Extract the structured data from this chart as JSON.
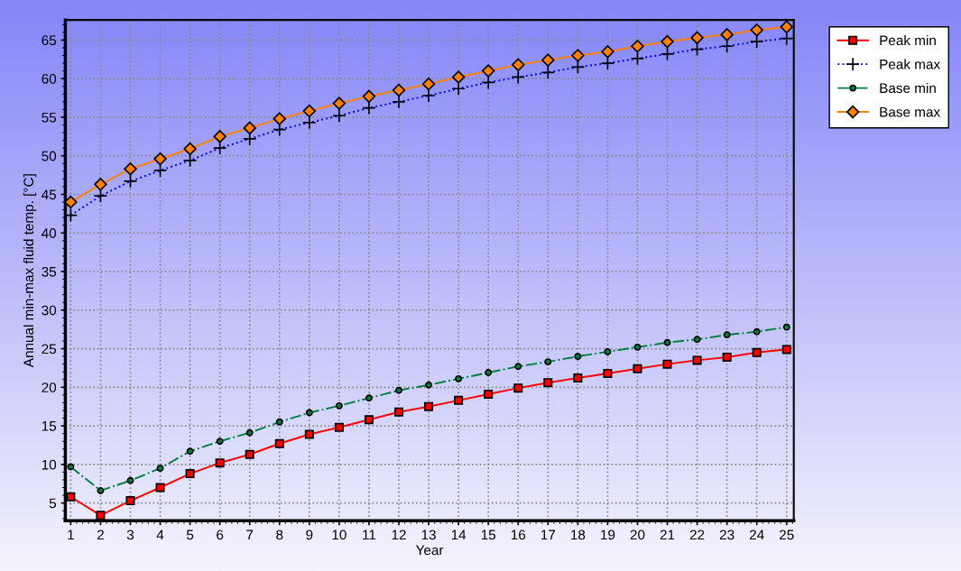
{
  "chart_data": {
    "type": "line",
    "xlabel": "Year",
    "ylabel": "Annual min-max fluid temp. [°C]",
    "x": [
      1,
      2,
      3,
      4,
      5,
      6,
      7,
      8,
      9,
      10,
      11,
      12,
      13,
      14,
      15,
      16,
      17,
      18,
      19,
      20,
      21,
      22,
      23,
      24,
      25
    ],
    "xlim": [
      0.82,
      25.24
    ],
    "xticks": [
      1,
      2,
      3,
      4,
      5,
      6,
      7,
      8,
      9,
      10,
      11,
      12,
      13,
      14,
      15,
      16,
      17,
      18,
      19,
      20,
      21,
      22,
      23,
      24,
      25
    ],
    "ylim": [
      2.7,
      67.6
    ],
    "yticks": [
      5,
      10,
      15,
      20,
      25,
      30,
      35,
      40,
      45,
      50,
      55,
      60,
      65
    ],
    "grid": true,
    "legend": "top right",
    "series": [
      {
        "name": "Peak min",
        "color": "#ff0000",
        "marker": "square",
        "line_style": "solid",
        "values": [
          5.8,
          3.4,
          5.3,
          7.0,
          8.8,
          10.2,
          11.3,
          12.7,
          13.9,
          14.8,
          15.8,
          16.8,
          17.5,
          18.3,
          19.1,
          19.9,
          20.6,
          21.2,
          21.8,
          22.4,
          23.0,
          23.5,
          23.9,
          24.5,
          24.9
        ]
      },
      {
        "name": "Peak max",
        "color": "#0000ff",
        "marker": "cross",
        "line_style": "dotted",
        "values": [
          42.3,
          44.8,
          46.7,
          48.1,
          49.4,
          51.0,
          52.2,
          53.4,
          54.3,
          55.2,
          56.2,
          57.0,
          57.8,
          58.7,
          59.5,
          60.2,
          60.8,
          61.5,
          62.0,
          62.6,
          63.2,
          63.8,
          64.2,
          64.8,
          65.2
        ]
      },
      {
        "name": "Base min",
        "color": "#008040",
        "marker": "circle",
        "line_style": "dashdot",
        "values": [
          9.7,
          6.6,
          7.9,
          9.5,
          11.7,
          13.0,
          14.1,
          15.5,
          16.7,
          17.6,
          18.6,
          19.6,
          20.3,
          21.1,
          21.9,
          22.7,
          23.3,
          24.0,
          24.6,
          25.2,
          25.8,
          26.2,
          26.8,
          27.2,
          27.8
        ]
      },
      {
        "name": "Base max",
        "color": "#ff8000",
        "marker": "diamond",
        "line_style": "solid",
        "values": [
          44.0,
          46.3,
          48.3,
          49.6,
          50.9,
          52.5,
          53.6,
          54.8,
          55.8,
          56.8,
          57.7,
          58.5,
          59.3,
          60.2,
          61.0,
          61.8,
          62.4,
          63.0,
          63.5,
          64.2,
          64.8,
          65.3,
          65.7,
          66.3,
          66.7
        ]
      }
    ]
  }
}
